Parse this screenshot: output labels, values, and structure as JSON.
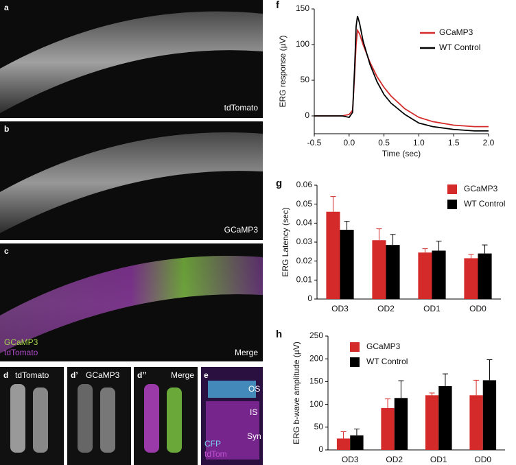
{
  "panels": {
    "a": {
      "letter": "a",
      "label": "tdTomato"
    },
    "b": {
      "letter": "b",
      "label": "GCaMP3"
    },
    "c": {
      "letter": "c",
      "label": "Merge",
      "legend1": "GCaMP3",
      "legend2": "tdTomato"
    },
    "d": {
      "letter": "d",
      "label": "tdTomato"
    },
    "d1": {
      "letter": "d’",
      "label": "GCaMP3"
    },
    "d2": {
      "letter": "d’’",
      "label": "Merge"
    },
    "e": {
      "letter": "e",
      "os": "OS",
      "is": "IS",
      "syn": "Syn",
      "cfp": "CFP",
      "tdtom": "tdTom"
    }
  },
  "chart_data": [
    {
      "type": "line",
      "panel_letter": "f",
      "x_label": "Time (sec)",
      "y_label": "ERG response (µV)",
      "x": [
        -0.5,
        -0.3,
        -0.1,
        0,
        0.05,
        0.08,
        0.1,
        0.12,
        0.15,
        0.2,
        0.3,
        0.4,
        0.5,
        0.6,
        0.8,
        1.0,
        1.2,
        1.5,
        1.8,
        2.0
      ],
      "series": [
        {
          "name": "GCaMP3",
          "color": "#d42a2a",
          "values": [
            0,
            0,
            0,
            2,
            8,
            60,
            100,
            120,
            115,
            100,
            75,
            55,
            40,
            28,
            10,
            -2,
            -8,
            -13,
            -15,
            -15
          ]
        },
        {
          "name": "WT Control",
          "color": "#000000",
          "values": [
            0,
            0,
            0,
            -2,
            5,
            70,
            125,
            140,
            130,
            105,
            72,
            48,
            30,
            18,
            2,
            -10,
            -15,
            -19,
            -21,
            -21
          ]
        }
      ],
      "xlim": [
        -0.5,
        2.0
      ],
      "xticks": [
        -0.5,
        {
          "value": 0,
          "label": "0.0"
        },
        0.5,
        {
          "value": 1,
          "label": "1.0"
        },
        1.5,
        {
          "value": 2,
          "label": "2.0"
        }
      ],
      "ylim": [
        -25,
        150
      ],
      "yticks": [
        0,
        50,
        100,
        150
      ]
    },
    {
      "type": "bar",
      "panel_letter": "g",
      "y_label": "ERG Latency (sec)",
      "categories": [
        "OD3",
        "OD2",
        "OD1",
        "OD0"
      ],
      "series": [
        {
          "name": "GCaMP3",
          "color": "#d42a2a",
          "values": [
            0.046,
            0.031,
            0.0245,
            0.0215
          ],
          "errors": [
            0.008,
            0.006,
            0.002,
            0.002
          ]
        },
        {
          "name": "WT Control",
          "color": "#000000",
          "values": [
            0.0365,
            0.0285,
            0.0255,
            0.024
          ],
          "errors": [
            0.0045,
            0.0055,
            0.005,
            0.0045
          ]
        }
      ],
      "ylim": [
        0,
        0.06
      ],
      "yticks": [
        0,
        0.01,
        0.02,
        0.03,
        0.04,
        0.05,
        0.06
      ]
    },
    {
      "type": "bar",
      "panel_letter": "h",
      "y_label": "ERG b-wave amplitude (µV)",
      "categories": [
        "OD3",
        "OD2",
        "OD1",
        "OD0"
      ],
      "series": [
        {
          "name": "GCaMP3",
          "color": "#d42a2a",
          "values": [
            25,
            92,
            120,
            120
          ],
          "errors": [
            15,
            20,
            5,
            33
          ]
        },
        {
          "name": "WT Control",
          "color": "#000000",
          "values": [
            32,
            114,
            140,
            153
          ],
          "errors": [
            14,
            38,
            27,
            45
          ]
        }
      ],
      "ylim": [
        0,
        250
      ],
      "yticks": [
        0,
        50,
        100,
        150,
        200,
        250
      ]
    }
  ]
}
